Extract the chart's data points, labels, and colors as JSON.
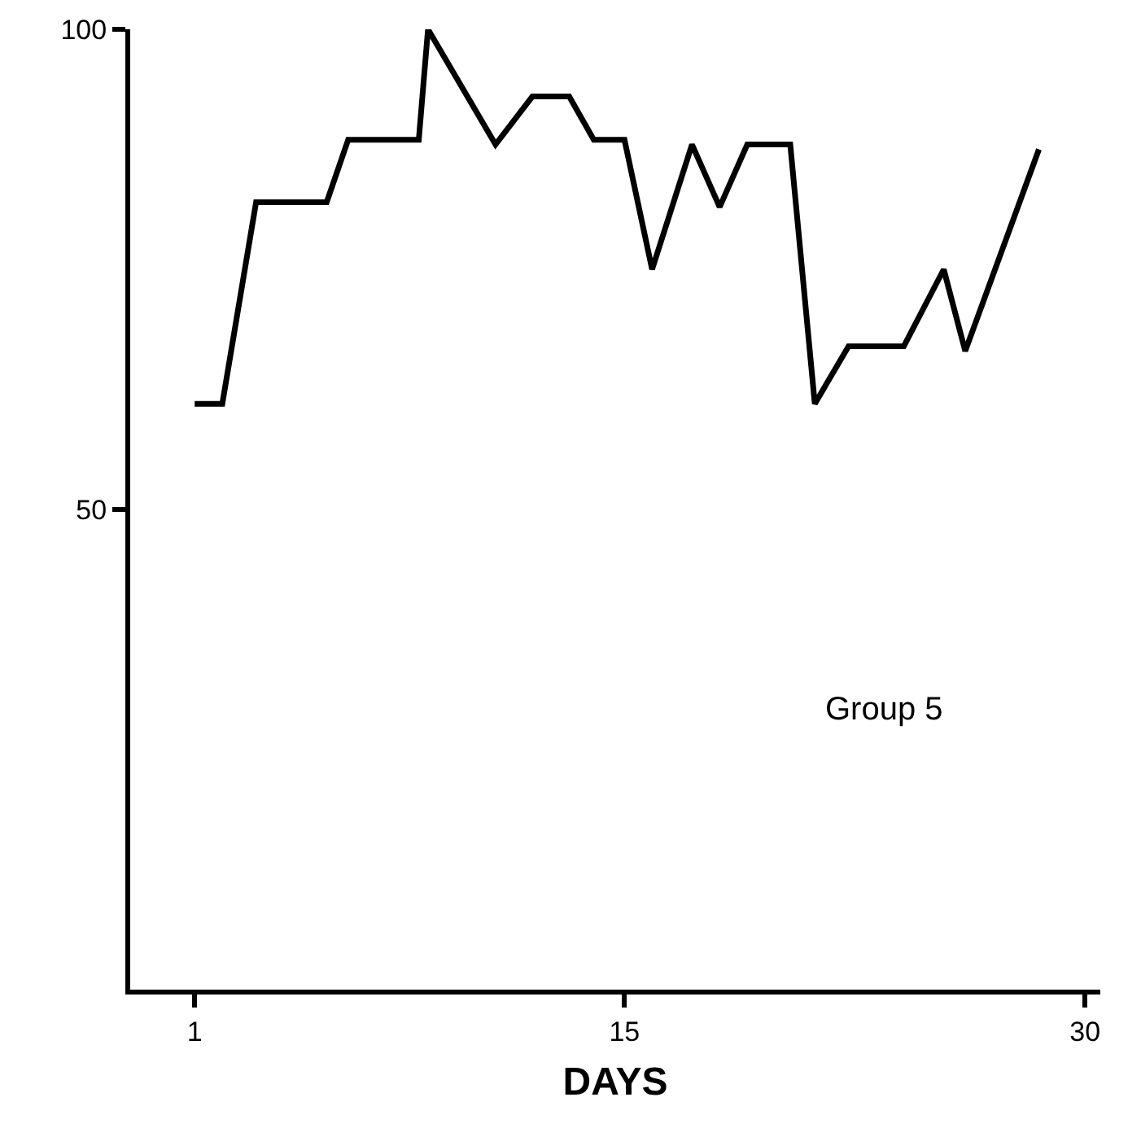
{
  "chart_data": {
    "type": "line",
    "xlabel": "DAYS",
    "annotations": [
      "Group 5"
    ],
    "x": [
      1,
      1.9,
      3,
      5.3,
      6,
      8.3,
      8.6,
      10.8,
      12,
      13.2,
      14,
      15,
      15.9,
      17.2,
      18.1,
      19,
      20.4,
      21.2,
      22.3,
      24.1,
      25.4,
      26.1,
      28.5
    ],
    "series": [
      {
        "color": "#000000",
        "values": [
          61,
          61,
          82,
          82,
          88.5,
          88.5,
          100,
          88,
          93,
          93,
          88.5,
          88.5,
          75,
          88,
          81.5,
          88,
          88,
          61,
          67,
          67,
          75,
          66.5,
          87.5
        ]
      }
    ],
    "xlim": [
      -1.1,
      30.5
    ],
    "ylim": [
      0,
      100
    ],
    "xticks": [
      1,
      15,
      30
    ],
    "yticks": [
      50,
      100
    ],
    "grid": false,
    "marker": "none",
    "line_style": "solid"
  }
}
